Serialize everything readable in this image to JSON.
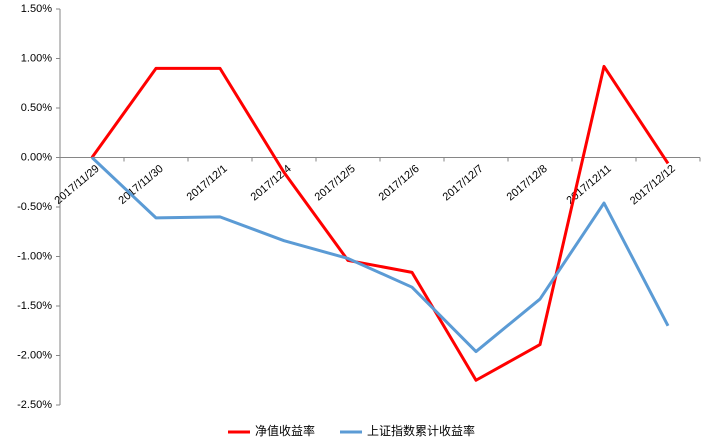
{
  "chart_data": {
    "type": "line",
    "categories": [
      "2017/11/29",
      "2017/11/30",
      "2017/12/1",
      "2017/12/4",
      "2017/12/5",
      "2017/12/6",
      "2017/12/7",
      "2017/12/8",
      "2017/12/11",
      "2017/12/12"
    ],
    "series": [
      {
        "name": "净值收益率",
        "color": "#ff0000",
        "values": [
          0,
          0.9,
          0.9,
          -0.15,
          -1.04,
          -1.16,
          -2.25,
          -1.89,
          0.92,
          -0.06
        ]
      },
      {
        "name": "上证指数累计收益率",
        "color": "#5b9bd5",
        "values": [
          0,
          -0.61,
          -0.6,
          -0.84,
          -1.02,
          -1.31,
          -1.96,
          -1.43,
          -0.46,
          -1.7
        ]
      }
    ],
    "ylim": [
      -2.5,
      1.5
    ],
    "yticks": [
      {
        "value": -2.5,
        "label": "-2.50%"
      },
      {
        "value": -2.0,
        "label": "-2.00%"
      },
      {
        "value": -1.5,
        "label": "-1.50%"
      },
      {
        "value": -1.0,
        "label": "-1.00%"
      },
      {
        "value": -0.5,
        "label": "-0.50%"
      },
      {
        "value": 0,
        "label": "0.00%"
      },
      {
        "value": 0.5,
        "label": "0.50%"
      },
      {
        "value": 1.0,
        "label": "1.00%"
      },
      {
        "value": 1.5,
        "label": "1.50%"
      }
    ],
    "grid": false,
    "legend": "bottom"
  }
}
